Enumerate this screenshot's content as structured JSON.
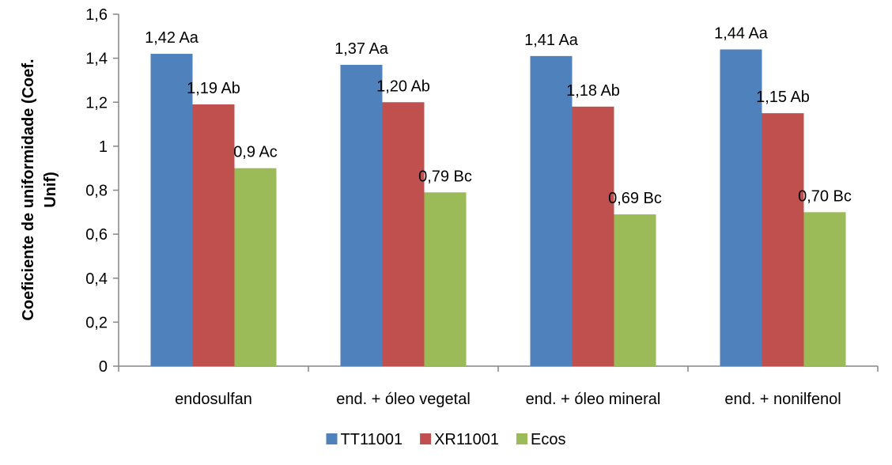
{
  "chart_data": {
    "type": "bar",
    "categories": [
      "endosulfan",
      "end. + óleo vegetal",
      "end. + óleo mineral",
      "end. + nonilfenol"
    ],
    "series": [
      {
        "name": "TT11001",
        "color": "#4f81bd",
        "values": [
          1.42,
          1.37,
          1.41,
          1.44
        ],
        "labels": [
          "1,42 Aa",
          "1,37 Aa",
          "1,41 Aa",
          "1,44 Aa"
        ]
      },
      {
        "name": "XR11001",
        "color": "#c0504d",
        "values": [
          1.19,
          1.2,
          1.18,
          1.15
        ],
        "labels": [
          "1,19 Ab",
          "1,20 Ab",
          "1,18 Ab",
          "1,15 Ab"
        ]
      },
      {
        "name": "Ecos",
        "color": "#9bbb59",
        "values": [
          0.9,
          0.79,
          0.69,
          0.7
        ],
        "labels": [
          "0,9 Ac",
          "0,79 Bc",
          "0,69 Bc",
          "0,70 Bc"
        ]
      }
    ],
    "title": "",
    "xlabel": "",
    "ylabel_lines": [
      "Coeficiente de uniformidade (Coef.",
      "Unif)"
    ],
    "ylim": [
      0,
      1.6
    ],
    "yticks": [
      0,
      0.2,
      0.4,
      0.6,
      0.8,
      1,
      1.2,
      1.4,
      1.6
    ],
    "ytick_labels": [
      "0",
      "0,2",
      "0,4",
      "0,6",
      "0,8",
      "1",
      "1,2",
      "1,4",
      "1,6"
    ],
    "grid": false,
    "legend_position": "bottom"
  }
}
